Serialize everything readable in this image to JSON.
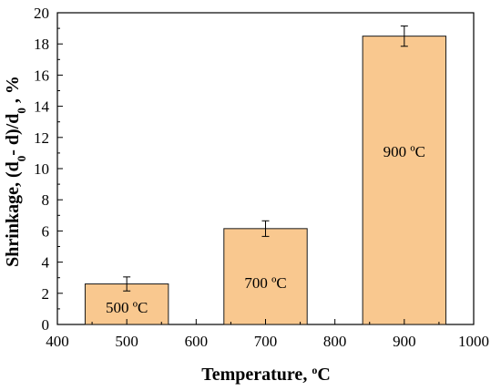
{
  "chart_data": {
    "type": "bar",
    "x": [
      500,
      700,
      900
    ],
    "values": [
      2.6,
      6.15,
      18.5
    ],
    "errors": [
      0.45,
      0.5,
      0.65
    ],
    "bar_width": 120,
    "bar_labels": [
      "500 ºC",
      "700 ºC",
      "900 ºC"
    ],
    "xlim": [
      400,
      1000
    ],
    "ylim": [
      0,
      20
    ],
    "xticks": [
      400,
      500,
      600,
      700,
      800,
      900,
      1000
    ],
    "yticks": [
      0,
      2,
      4,
      6,
      8,
      10,
      12,
      14,
      16,
      18,
      20
    ],
    "xlabel": "Temperature, ºC",
    "ylabel": "Shrinkage, (d0- d)/d0 , %",
    "grid": false,
    "legend": "none",
    "colors": {
      "bar_fill": "#f9c88f",
      "bar_stroke": "#1a1a1a",
      "axis": "#000000"
    }
  }
}
